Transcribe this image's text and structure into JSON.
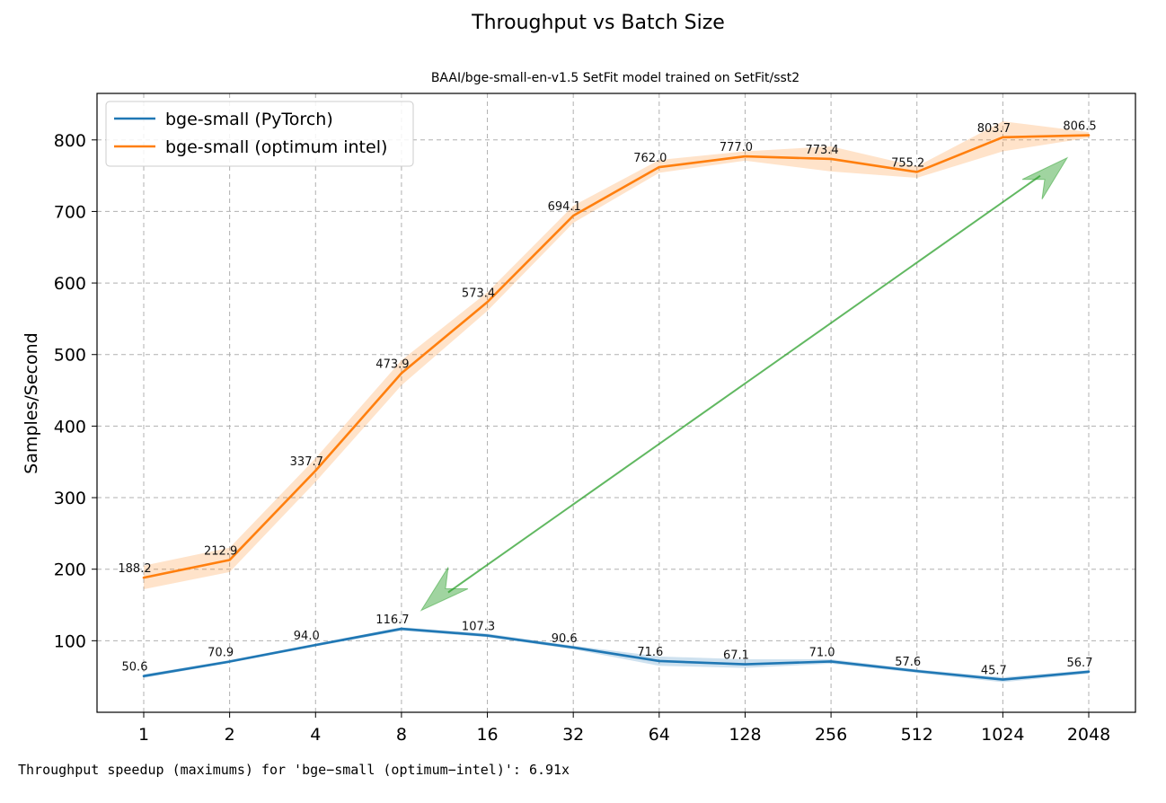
{
  "colors": {
    "pytorch": "#1f77b4",
    "optimum": "#ff7f0e",
    "arrow": "#2ca02c"
  },
  "chart_data": {
    "type": "line",
    "title": "Throughput vs Batch Size",
    "subtitle": "BAAI/bge-small-en-v1.5 SetFit model trained on SetFit/sst2",
    "xlabel": "",
    "ylabel": "Samples/Second",
    "ylim": [
      0,
      865
    ],
    "y_ticks": [
      100,
      200,
      300,
      400,
      500,
      600,
      700,
      800
    ],
    "categories": [
      "1",
      "2",
      "4",
      "8",
      "16",
      "32",
      "64",
      "128",
      "256",
      "512",
      "1024",
      "2048"
    ],
    "grid": true,
    "legend_position": "top-left",
    "series": [
      {
        "name": "bge-small (PyTorch)",
        "values": [
          50.6,
          70.9,
          94.0,
          116.7,
          107.3,
          90.6,
          71.6,
          67.1,
          71.0,
          57.6,
          45.7,
          56.7
        ],
        "labels": [
          "50.6",
          "70.9",
          "94.0",
          "116.7",
          "107.3",
          "90.6",
          "71.6",
          "67.1",
          "71.0",
          "57.6",
          "45.7",
          "56.7"
        ],
        "band_low": [
          48,
          69,
          92,
          114,
          105,
          88,
          65,
          62,
          68,
          55,
          42,
          54
        ],
        "band_high": [
          53,
          73,
          96,
          119,
          110,
          93,
          78,
          74,
          74,
          60,
          49,
          59
        ]
      },
      {
        "name": "bge-small (optimum intel)",
        "values": [
          188.2,
          212.9,
          337.7,
          473.9,
          573.4,
          694.1,
          762.0,
          777.0,
          773.4,
          755.2,
          803.7,
          806.5
        ],
        "labels": [
          "188.2",
          "212.9",
          "337.7",
          "473.9",
          "573.4",
          "694.1",
          "762.0",
          "777.0",
          "773.4",
          "755.2",
          "803.7",
          "806.5"
        ],
        "band_low": [
          172,
          196,
          322,
          457,
          561,
          684,
          754,
          771,
          756,
          747,
          784,
          803
        ],
        "band_high": [
          205,
          230,
          355,
          492,
          587,
          708,
          772,
          784,
          791,
          763,
          826,
          811
        ]
      }
    ],
    "annotation": {
      "type": "double-arrow",
      "from": {
        "x": "8",
        "y": 155
      },
      "to": {
        "x": "2048",
        "y": 780
      }
    }
  },
  "output_text": "Throughput speedup (maximums) for 'bge−small (optimum−intel)': 6.91x"
}
